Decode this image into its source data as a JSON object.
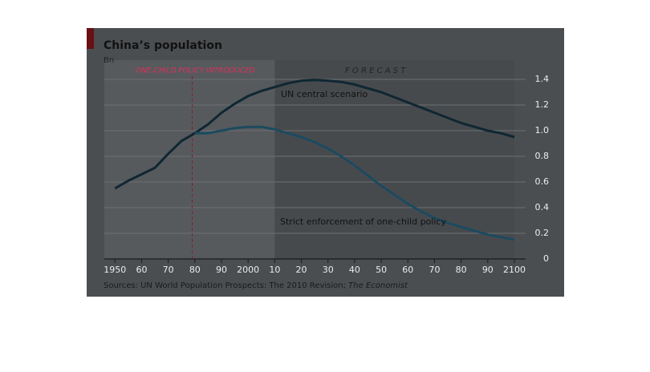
{
  "chart_data": {
    "type": "line",
    "title": "China’s population",
    "subtitle": "Bn",
    "annotation": "ONE-CHILD POLICY INTRODUCED",
    "annotation_x": 1979,
    "forecast_label": "F O R E C A S T",
    "forecast_start": 2010,
    "source": "Sources: UN World Population Prospects: The 2010 Revision;",
    "source_italic": "The Economist",
    "x": [
      1950,
      1955,
      1960,
      1965,
      1970,
      1975,
      1980,
      1985,
      1990,
      1995,
      2000,
      2005,
      2010,
      2015,
      2020,
      2025,
      2030,
      2035,
      2040,
      2045,
      2050,
      2055,
      2060,
      2065,
      2070,
      2075,
      2080,
      2085,
      2090,
      2095,
      2100
    ],
    "series": [
      {
        "name": "UN central scenario",
        "color": "#0f2733",
        "values": [
          0.55,
          0.61,
          0.66,
          0.71,
          0.82,
          0.92,
          0.98,
          1.05,
          1.14,
          1.21,
          1.27,
          1.31,
          1.34,
          1.37,
          1.39,
          1.395,
          1.39,
          1.38,
          1.36,
          1.33,
          1.3,
          1.26,
          1.22,
          1.18,
          1.14,
          1.1,
          1.06,
          1.03,
          1.0,
          0.98,
          0.95
        ]
      },
      {
        "name": "Strict enforcement of one-child policy",
        "color": "#1c4a60",
        "values": [
          null,
          null,
          null,
          null,
          null,
          null,
          0.98,
          0.98,
          1.0,
          1.02,
          1.03,
          1.03,
          1.01,
          0.98,
          0.95,
          0.91,
          0.86,
          0.8,
          0.73,
          0.65,
          0.57,
          0.5,
          0.43,
          0.37,
          0.32,
          0.28,
          0.25,
          0.22,
          0.19,
          0.17,
          0.15
        ]
      }
    ],
    "xlim": [
      1946,
      2100
    ],
    "ylim": [
      0,
      1.55
    ],
    "xticks": [
      1950,
      {
        "value": 1960,
        "label": "60"
      },
      {
        "value": 1970,
        "label": "70"
      },
      {
        "value": 1980,
        "label": "80"
      },
      {
        "value": 1990,
        "label": "90"
      },
      2000,
      {
        "value": 2010,
        "label": "10"
      },
      {
        "value": 2020,
        "label": "20"
      },
      {
        "value": 2030,
        "label": "30"
      },
      {
        "value": 2040,
        "label": "40"
      },
      {
        "value": 2050,
        "label": "50"
      },
      {
        "value": 2060,
        "label": "60"
      },
      {
        "value": 2070,
        "label": "70"
      },
      {
        "value": 2080,
        "label": "80"
      },
      {
        "value": 2090,
        "label": "90"
      },
      2100
    ],
    "yticks": [
      0,
      0.2,
      0.4,
      0.6,
      0.8,
      {
        "value": 1,
        "label": "1.0"
      },
      1.2,
      1.4
    ],
    "grid": true
  }
}
